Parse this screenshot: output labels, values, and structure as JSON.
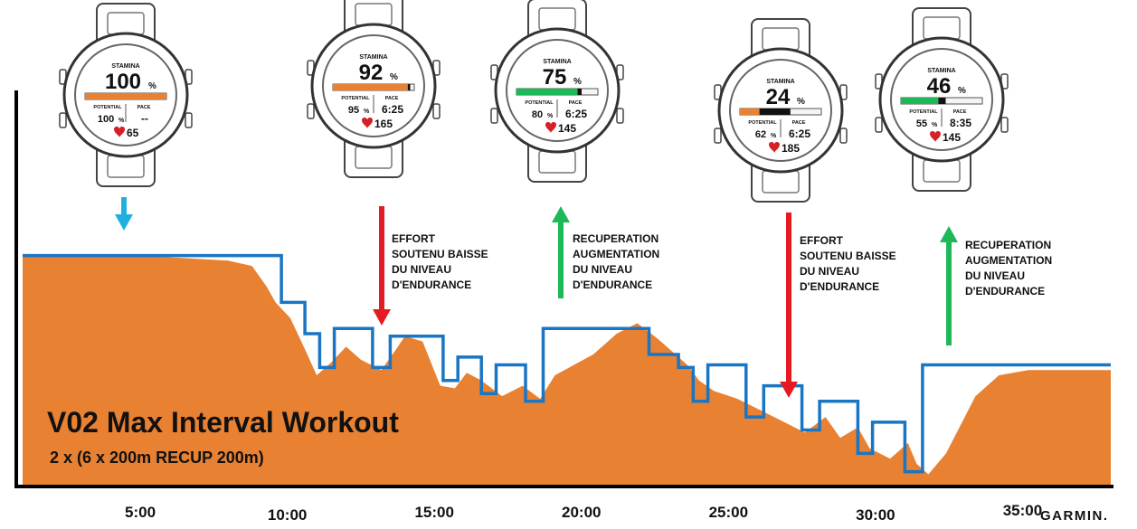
{
  "title": "V02 Max Interval Workout",
  "subtitle": "2 x (6 x 200m RECUP 200m)",
  "brand": "GARMIN.",
  "colors": {
    "area": "#e88131",
    "line": "#1a75c3",
    "arrow_start": "#20b0e0",
    "arrow_effort": "#e41b23",
    "arrow_recovery": "#1eb858",
    "bar_orange": "#e88131",
    "bar_green": "#1eb858",
    "heart": "#d71f26"
  },
  "chart_data": {
    "type": "area",
    "x_tick_labels": [
      "5:00",
      "10:00",
      "15:00",
      "20:00",
      "25:00",
      "30:00",
      "35:00"
    ],
    "x_ticks": [
      5,
      10,
      15,
      20,
      25,
      30,
      35
    ],
    "xlim": [
      1,
      38
    ],
    "ylim": [
      0,
      100
    ],
    "series": [
      {
        "kind": "area",
        "points": [
          [
            1,
            88
          ],
          [
            5,
            88
          ],
          [
            8,
            86
          ],
          [
            8.8,
            84
          ],
          [
            9.3,
            76
          ],
          [
            9.6,
            70
          ],
          [
            10.1,
            64
          ],
          [
            10.6,
            52
          ],
          [
            11,
            42
          ],
          [
            11.5,
            47
          ],
          [
            12,
            53
          ],
          [
            12.5,
            48
          ],
          [
            13.2,
            44
          ],
          [
            13.7,
            52
          ],
          [
            14,
            57
          ],
          [
            14.6,
            55
          ],
          [
            15.2,
            38
          ],
          [
            15.7,
            37
          ],
          [
            16.1,
            43
          ],
          [
            16.6,
            40
          ],
          [
            17.3,
            34
          ],
          [
            18,
            38
          ],
          [
            18.6,
            33
          ],
          [
            19.1,
            42
          ],
          [
            20.4,
            50
          ],
          [
            21.2,
            58
          ],
          [
            21.9,
            62
          ],
          [
            22.6,
            56
          ],
          [
            23.2,
            50
          ],
          [
            23.6,
            46
          ],
          [
            24,
            40
          ],
          [
            24.5,
            36
          ],
          [
            25.3,
            33
          ],
          [
            26.2,
            28
          ],
          [
            26.9,
            24
          ],
          [
            27.6,
            20
          ],
          [
            28.3,
            26
          ],
          [
            28.8,
            18
          ],
          [
            29.4,
            22
          ],
          [
            29.8,
            14
          ],
          [
            30.5,
            10
          ],
          [
            31.1,
            16
          ],
          [
            31.4,
            8
          ],
          [
            31.8,
            4
          ],
          [
            32.4,
            12
          ],
          [
            33.4,
            34
          ],
          [
            34.2,
            42
          ],
          [
            35.2,
            44
          ],
          [
            38,
            44
          ]
        ]
      },
      {
        "kind": "line",
        "points": [
          [
            1,
            88
          ],
          [
            9.8,
            88
          ],
          [
            9.8,
            70
          ],
          [
            10.6,
            70
          ],
          [
            10.6,
            58
          ],
          [
            11.1,
            58
          ],
          [
            11.1,
            45
          ],
          [
            11.6,
            45
          ],
          [
            11.6,
            60
          ],
          [
            12.9,
            60
          ],
          [
            12.9,
            45
          ],
          [
            13.5,
            45
          ],
          [
            13.5,
            57
          ],
          [
            15.3,
            57
          ],
          [
            15.3,
            40
          ],
          [
            15.8,
            40
          ],
          [
            15.8,
            49
          ],
          [
            16.6,
            49
          ],
          [
            16.6,
            35
          ],
          [
            17.1,
            35
          ],
          [
            17.1,
            46
          ],
          [
            18.1,
            46
          ],
          [
            18.1,
            32
          ],
          [
            18.7,
            32
          ],
          [
            18.7,
            60
          ],
          [
            22.3,
            60
          ],
          [
            22.3,
            50
          ],
          [
            23.3,
            50
          ],
          [
            23.3,
            45
          ],
          [
            23.8,
            45
          ],
          [
            23.8,
            32
          ],
          [
            24.3,
            32
          ],
          [
            24.3,
            46
          ],
          [
            25.6,
            46
          ],
          [
            25.6,
            26
          ],
          [
            26.2,
            26
          ],
          [
            26.2,
            38
          ],
          [
            27.5,
            38
          ],
          [
            27.5,
            21
          ],
          [
            28.1,
            21
          ],
          [
            28.1,
            32
          ],
          [
            29.4,
            32
          ],
          [
            29.4,
            12
          ],
          [
            29.9,
            12
          ],
          [
            29.9,
            24
          ],
          [
            31,
            24
          ],
          [
            31,
            5
          ],
          [
            31.6,
            5
          ],
          [
            31.6,
            46
          ],
          [
            38,
            46
          ]
        ]
      }
    ]
  },
  "watches": [
    {
      "stamina_label": "STAMINA",
      "stamina": "100",
      "unit": "%",
      "potential_label": "POTENTIAL",
      "potential": "100",
      "potential_unit": "%",
      "pace_label": "PACE",
      "pace": "--",
      "hr": "65",
      "bar_fill": 1.0,
      "bar_color": "#e88131",
      "bar_black": 0.0
    },
    {
      "stamina_label": "STAMINA",
      "stamina": "92",
      "unit": "%",
      "potential_label": "POTENTIAL",
      "potential": "95",
      "potential_unit": "%",
      "pace_label": "PACE",
      "pace": "6:25",
      "hr": "165",
      "bar_fill": 0.92,
      "bar_color": "#e88131",
      "bar_black": 0.03
    },
    {
      "stamina_label": "STAMINA",
      "stamina": "75",
      "unit": "%",
      "potential_label": "POTENTIAL",
      "potential": "80",
      "potential_unit": "%",
      "pace_label": "PACE",
      "pace": "6:25",
      "hr": "145",
      "bar_fill": 0.75,
      "bar_color": "#1eb858",
      "bar_black": 0.05
    },
    {
      "stamina_label": "STAMINA",
      "stamina": "24",
      "unit": "%",
      "potential_label": "POTENTIAL",
      "potential": "62",
      "potential_unit": "%",
      "pace_label": "PACE",
      "pace": "6:25",
      "hr": "185",
      "bar_fill": 0.24,
      "bar_color": "#e88131",
      "bar_black": 0.38
    },
    {
      "stamina_label": "STAMINA",
      "stamina": "46",
      "unit": "%",
      "potential_label": "POTENTIAL",
      "potential": "55",
      "potential_unit": "%",
      "pace_label": "PACE",
      "pace": "8:35",
      "hr": "145",
      "bar_fill": 0.46,
      "bar_color": "#1eb858",
      "bar_black": 0.09
    }
  ],
  "annotations": [
    {
      "lines": [
        "EFFORT",
        "SOUTENU BAISSE",
        "DU NIVEAU",
        "D'ENDURANCE"
      ]
    },
    {
      "lines": [
        "RECUPERATION",
        "AUGMENTATION",
        "DU NIVEAU",
        "D'ENDURANCE"
      ]
    },
    {
      "lines": [
        "EFFORT",
        "SOUTENU BAISSE",
        "DU NIVEAU",
        "D'ENDURANCE"
      ]
    },
    {
      "lines": [
        "RECUPERATION",
        "AUGMENTATION",
        "DU NIVEAU",
        "D'ENDURANCE"
      ]
    }
  ]
}
